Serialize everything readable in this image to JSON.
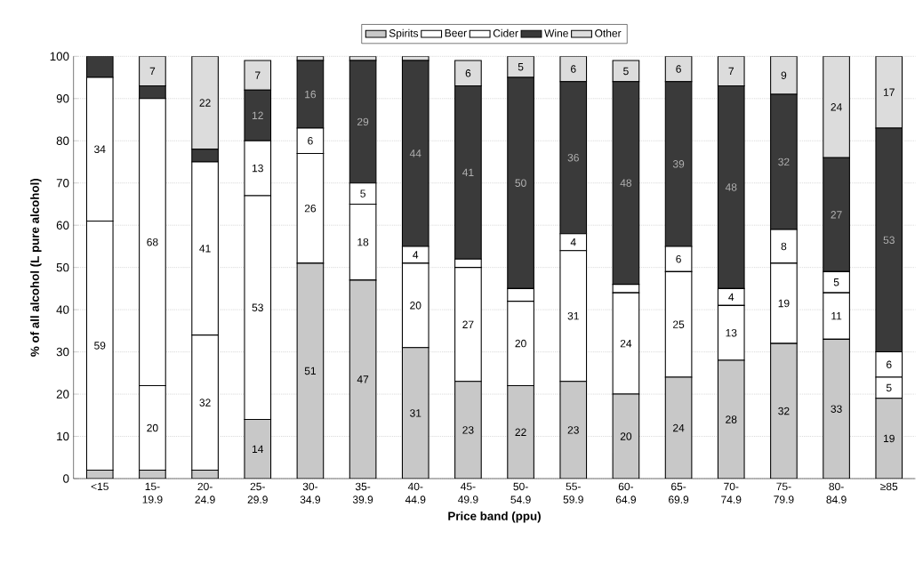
{
  "chart_data": {
    "type": "bar",
    "stacked": true,
    "xlabel": "Price band (ppu)",
    "ylabel": "% of all alcohol (L pure alcohol)",
    "categories": [
      "<15",
      "15- 19.9",
      "20- 24.9",
      "25- 29.9",
      "30- 34.9",
      "35- 39.9",
      "40- 44.9",
      "45- 49.9",
      "50- 54.9",
      "55- 59.9",
      "60- 64.9",
      "65- 69.9",
      "70- 74.9",
      "75- 79.9",
      "80- 84.9",
      "≥85"
    ],
    "series": [
      {
        "name": "Spirits",
        "color": "#c8c8c8",
        "values": [
          2,
          2,
          2,
          14,
          51,
          47,
          31,
          23,
          22,
          23,
          20,
          24,
          28,
          32,
          33,
          19
        ],
        "value_labels": [
          null,
          null,
          null,
          "14",
          "51",
          "47",
          "31",
          "23",
          "22",
          "23",
          "20",
          "24",
          "28",
          "32",
          "33",
          "19"
        ]
      },
      {
        "name": "Beer",
        "color": "#ffffff",
        "values": [
          59,
          20,
          32,
          53,
          26,
          18,
          20,
          27,
          20,
          31,
          24,
          25,
          13,
          19,
          11,
          5
        ],
        "value_labels": [
          "59",
          "20",
          "32",
          "53",
          "26",
          "18",
          "20",
          "27",
          "20",
          "31",
          "24",
          "25",
          "13",
          "19",
          "11",
          "5"
        ]
      },
      {
        "name": "Cider",
        "color": "#ffffff",
        "values": [
          34,
          68,
          41,
          13,
          6,
          5,
          4,
          2,
          3,
          4,
          2,
          6,
          4,
          8,
          5,
          6
        ],
        "value_labels": [
          "34",
          "68",
          "41",
          "13",
          "6",
          "5",
          "4",
          null,
          null,
          "4",
          null,
          "6",
          "4",
          "8",
          "5",
          "6"
        ]
      },
      {
        "name": "Wine",
        "color": "#3a3a3a",
        "values": [
          5,
          3,
          3,
          12,
          16,
          29,
          44,
          41,
          50,
          36,
          48,
          39,
          48,
          32,
          27,
          53
        ],
        "value_labels": [
          null,
          null,
          null,
          "12",
          "16",
          "29",
          "44",
          "41",
          "50",
          "36",
          "48",
          "39",
          "48",
          "32",
          "27",
          "53"
        ]
      },
      {
        "name": "Other",
        "color": "#dcdcdc",
        "values": [
          0,
          7,
          22,
          7,
          1,
          1,
          1,
          6,
          5,
          6,
          5,
          6,
          7,
          9,
          24,
          17
        ],
        "value_labels": [
          null,
          "7",
          "22",
          "7",
          null,
          null,
          null,
          "6",
          "5",
          "6",
          "5",
          "6",
          "7",
          "9",
          "24",
          "17"
        ]
      }
    ],
    "ylim": [
      0,
      100
    ],
    "yticks": [
      0,
      10,
      20,
      30,
      40,
      50,
      60,
      70,
      80,
      90,
      100
    ],
    "grid": "y",
    "legend": "top"
  }
}
